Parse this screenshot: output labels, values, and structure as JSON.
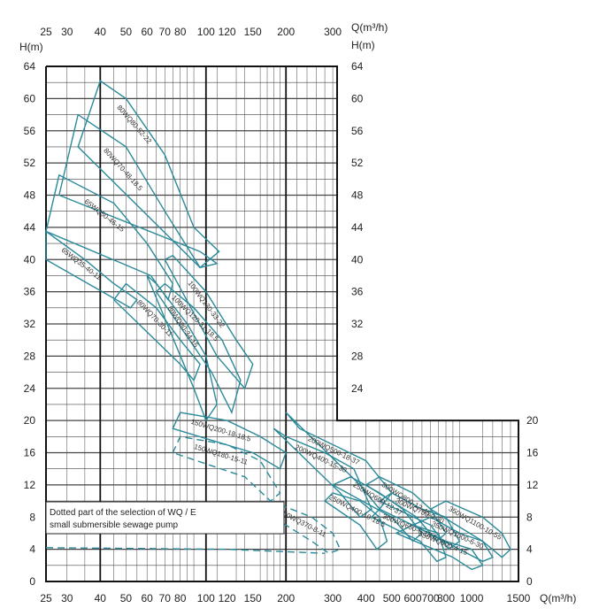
{
  "chart_data": {
    "type": "line",
    "axes": {
      "x_unit": "Q(m³/h)",
      "y_unit": "H(m)",
      "x_ticks_top": [
        "25",
        "30",
        "40",
        "50",
        "60",
        "70",
        "80",
        "100",
        "120",
        "150",
        "200",
        "300"
      ],
      "x_ticks_bottom": [
        "25",
        "30",
        "40",
        "50",
        "60",
        "70",
        "80",
        "100",
        "120",
        "150",
        "200",
        "300",
        "400",
        "500",
        "600",
        "700",
        "800",
        "1000",
        "1500"
      ],
      "y_ticks_left": [
        "0",
        "4",
        "8",
        "12",
        "16",
        "20",
        "24",
        "28",
        "32",
        "36",
        "40",
        "44",
        "48",
        "52",
        "56",
        "60",
        "64"
      ],
      "y_ticks_upper_right": [
        "24",
        "28",
        "32",
        "36",
        "40",
        "44",
        "48",
        "52",
        "56",
        "60",
        "64"
      ],
      "y_ticks_lower_right": [
        "0",
        "4",
        "8",
        "12",
        "16",
        "20"
      ],
      "x_scale": "log",
      "xlim": [
        25,
        1500
      ],
      "ylim": [
        0,
        64
      ],
      "grid": true
    },
    "note_lines": [
      "Dotted part of the selection of WQ / E",
      "small submersible sewage pump"
    ],
    "series": [
      {
        "name": "80WQ80-52-22",
        "style": "solid",
        "region": [
          [
            33,
            54
          ],
          [
            40,
            62.2
          ],
          [
            50,
            60
          ],
          [
            70,
            53
          ],
          [
            90,
            44
          ],
          [
            112,
            41
          ],
          [
            95,
            39
          ]
        ]
      },
      {
        "name": "80WQ70-48-18.5",
        "style": "solid",
        "region": [
          [
            28,
            48
          ],
          [
            33,
            58
          ],
          [
            50,
            54
          ],
          [
            70,
            46
          ],
          [
            95,
            39
          ],
          [
            110,
            39.5
          ],
          [
            95,
            41
          ]
        ]
      },
      {
        "name": "65WQ50-46-15",
        "style": "solid",
        "region": [
          [
            25,
            43.5
          ],
          [
            28,
            50.5
          ],
          [
            45,
            47
          ],
          [
            60,
            42
          ],
          [
            75,
            37
          ],
          [
            72,
            35
          ],
          [
            62,
            38
          ]
        ]
      },
      {
        "name": "65WQ35-40-11",
        "style": "solid",
        "region": [
          [
            25,
            40
          ],
          [
            25,
            43.5
          ],
          [
            35,
            40
          ],
          [
            45,
            37
          ],
          [
            55,
            35
          ],
          [
            52,
            34
          ]
        ]
      },
      {
        "name": "100WQ130-33-22",
        "style": "solid",
        "region": [
          [
            70,
            40
          ],
          [
            75,
            40.5
          ],
          [
            100,
            36
          ],
          [
            130,
            30
          ],
          [
            150,
            27
          ],
          [
            140,
            24
          ],
          [
            110,
            28
          ]
        ]
      },
      {
        "name": "100WQ120-31-18.5",
        "style": "solid",
        "region": [
          [
            65,
            36
          ],
          [
            70,
            37
          ],
          [
            90,
            34
          ],
          [
            115,
            30
          ],
          [
            135,
            25
          ],
          [
            125,
            21
          ],
          [
            105,
            26
          ]
        ]
      },
      {
        "name": "80WQ80-34-15",
        "style": "solid",
        "region": [
          [
            60,
            38
          ],
          [
            65,
            37
          ],
          [
            85,
            32
          ],
          [
            100,
            28
          ],
          [
            110,
            22
          ],
          [
            100,
            20
          ],
          [
            90,
            24
          ]
        ]
      },
      {
        "name": "80WQ70-30-11",
        "style": "solid",
        "region": [
          [
            45,
            35
          ],
          [
            50,
            37
          ],
          [
            65,
            34
          ],
          [
            80,
            30
          ],
          [
            95,
            27
          ],
          [
            90,
            25
          ],
          [
            80,
            27
          ]
        ]
      },
      {
        "name": "200WQ500-18-37",
        "style": "solid",
        "region": [
          [
            200,
            21
          ],
          [
            225,
            19
          ],
          [
            300,
            17
          ],
          [
            400,
            15
          ],
          [
            500,
            11
          ],
          [
            450,
            9
          ],
          [
            380,
            12
          ]
        ]
      },
      {
        "name": "200WQ400-15-30",
        "style": "solid",
        "region": [
          [
            180,
            19
          ],
          [
            200,
            18
          ],
          [
            280,
            16
          ],
          [
            360,
            14
          ],
          [
            420,
            9
          ],
          [
            380,
            8
          ],
          [
            320,
            11
          ]
        ]
      },
      {
        "name": "150WQ200-18-18.5",
        "style": "solid",
        "region": [
          [
            75,
            19
          ],
          [
            80,
            21
          ],
          [
            120,
            20
          ],
          [
            160,
            18
          ],
          [
            200,
            16
          ],
          [
            190,
            14
          ],
          [
            150,
            16
          ]
        ]
      },
      {
        "name": "150WQ180-15-11",
        "style": "dashed",
        "region": [
          [
            75,
            16
          ],
          [
            80,
            18
          ],
          [
            120,
            17
          ],
          [
            160,
            15
          ],
          [
            190,
            11
          ],
          [
            175,
            10
          ],
          [
            140,
            13
          ]
        ]
      },
      {
        "name": "300WQ800-12-45",
        "style": "solid",
        "region": [
          [
            400,
            12
          ],
          [
            450,
            13
          ],
          [
            600,
            11
          ],
          [
            700,
            9
          ],
          [
            800,
            6
          ],
          [
            740,
            5
          ],
          [
            620,
            8
          ]
        ]
      },
      {
        "name": "250WQ600-12-37",
        "style": "solid",
        "region": [
          [
            300,
            12
          ],
          [
            350,
            13
          ],
          [
            450,
            11
          ],
          [
            550,
            9
          ],
          [
            650,
            6
          ],
          [
            600,
            5
          ],
          [
            500,
            8
          ]
        ]
      },
      {
        "name": "300WQ750-9-30",
        "style": "solid",
        "region": [
          [
            450,
            10
          ],
          [
            500,
            11
          ],
          [
            650,
            9
          ],
          [
            800,
            8
          ],
          [
            900,
            5
          ],
          [
            820,
            4
          ],
          [
            700,
            7
          ]
        ]
      },
      {
        "name": "250WQ400-10-18.5",
        "style": "solid",
        "region": [
          [
            280,
            10
          ],
          [
            300,
            11
          ],
          [
            380,
            10
          ],
          [
            450,
            8
          ],
          [
            480,
            5
          ],
          [
            440,
            4
          ],
          [
            380,
            7
          ]
        ]
      },
      {
        "name": "300WQ650-6-18.5",
        "style": "solid",
        "region": [
          [
            420,
            8
          ],
          [
            450,
            9
          ],
          [
            600,
            7
          ],
          [
            750,
            6
          ],
          [
            800,
            3
          ],
          [
            740,
            2.5
          ],
          [
            640,
            5
          ]
        ]
      },
      {
        "name": "350WQ1100-10-55",
        "style": "solid",
        "region": [
          [
            700,
            9
          ],
          [
            800,
            10
          ],
          [
            1100,
            8
          ],
          [
            1300,
            6
          ],
          [
            1400,
            4
          ],
          [
            1300,
            3
          ],
          [
            1100,
            5
          ]
        ]
      },
      {
        "name": "350WQ1000-6-30",
        "style": "solid",
        "region": [
          [
            600,
            7
          ],
          [
            700,
            8
          ],
          [
            900,
            6
          ],
          [
            1100,
            5
          ],
          [
            1200,
            3
          ],
          [
            1100,
            2.5
          ],
          [
            900,
            4
          ]
        ]
      },
      {
        "name": "250WQ370-8-11",
        "style": "dashed",
        "region": [
          [
            160,
            9
          ],
          [
            175,
            10
          ],
          [
            250,
            8
          ],
          [
            300,
            6
          ],
          [
            320,
            4
          ],
          [
            290,
            3.5
          ],
          [
            250,
            5
          ]
        ]
      },
      {
        "name": "350WQ900-4-15",
        "style": "solid",
        "region": [
          [
            520,
            6
          ],
          [
            600,
            7
          ],
          [
            800,
            5
          ],
          [
            1000,
            4
          ],
          [
            1100,
            2
          ],
          [
            1000,
            1.5
          ],
          [
            850,
            3
          ]
        ]
      }
    ]
  }
}
